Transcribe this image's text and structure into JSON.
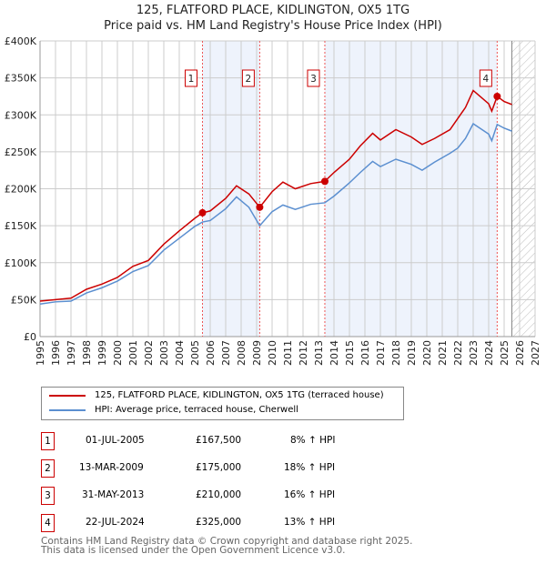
{
  "chart_data": {
    "type": "line",
    "title": "125, FLATFORD PLACE, KIDLINGTON, OX5 1TG",
    "subtitle": "Price paid vs. HM Land Registry's House Price Index (HPI)",
    "xlim": [
      1995,
      2027
    ],
    "ylim": [
      0,
      400000
    ],
    "yticks": [
      "£0",
      "£50K",
      "£100K",
      "£150K",
      "£200K",
      "£250K",
      "£300K",
      "£350K",
      "£400K"
    ],
    "xticks": [
      "1995",
      "1996",
      "1997",
      "1998",
      "1999",
      "2000",
      "2001",
      "2002",
      "2003",
      "2004",
      "2005",
      "2006",
      "2007",
      "2008",
      "2009",
      "2010",
      "2011",
      "2012",
      "2013",
      "2014",
      "2015",
      "2016",
      "2017",
      "2018",
      "2019",
      "2020",
      "2021",
      "2022",
      "2023",
      "2024",
      "2025",
      "2026",
      "2027"
    ],
    "series": [
      {
        "name": "125, FLATFORD PLACE, KIDLINGTON, OX5 1TG (terraced house)",
        "color": "#cc0000",
        "x": [
          1995,
          1996,
          1997,
          1998,
          1999,
          2000,
          2001,
          2002,
          2003,
          2004,
          2005,
          2005.5,
          2006,
          2007,
          2007.7,
          2008.5,
          2009.2,
          2010,
          2010.7,
          2011.5,
          2012.5,
          2013.4,
          2014,
          2015,
          2015.7,
          2016.5,
          2017,
          2018,
          2019,
          2019.7,
          2020.5,
          2021.5,
          2022,
          2022.5,
          2023,
          2024,
          2024.2,
          2024.55,
          2025,
          2025.5
        ],
        "y": [
          48,
          50,
          52,
          64,
          71,
          80,
          95,
          103,
          125,
          143,
          160,
          167.5,
          170,
          187,
          204,
          193,
          175,
          196,
          209,
          200,
          207,
          210,
          222,
          240,
          258,
          275,
          266,
          280,
          270,
          260,
          268,
          280,
          295,
          310,
          333,
          315,
          305,
          325,
          318,
          314
        ]
      },
      {
        "name": "HPI: Average price, terraced house, Cherwell",
        "color": "#5b8fd0",
        "x": [
          1995,
          1996,
          1997,
          1998,
          1999,
          2000,
          2001,
          2002,
          2003,
          2004,
          2005,
          2005.5,
          2006,
          2007,
          2007.7,
          2008.5,
          2009.2,
          2010,
          2010.7,
          2011.5,
          2012.5,
          2013.4,
          2014,
          2015,
          2015.7,
          2016.5,
          2017,
          2018,
          2019,
          2019.7,
          2020.5,
          2021.5,
          2022,
          2022.5,
          2023,
          2024,
          2024.2,
          2024.55,
          2025,
          2025.5
        ],
        "y": [
          44,
          47,
          48,
          59,
          66,
          75,
          88,
          96,
          117,
          133,
          149,
          155,
          157,
          173,
          189,
          175,
          150,
          169,
          178,
          172,
          179,
          181,
          190,
          208,
          222,
          237,
          230,
          240,
          233,
          225,
          236,
          248,
          255,
          268,
          288,
          274,
          265,
          287,
          282,
          278
        ]
      }
    ],
    "y_units": "thousands GBP",
    "sales": [
      {
        "n": "1",
        "x": 2005.5,
        "y": 167.5,
        "date": "01-JUL-2005",
        "price": "£167,500",
        "hpi": "8% ↑ HPI"
      },
      {
        "n": "2",
        "x": 2009.2,
        "y": 175,
        "date": "13-MAR-2009",
        "price": "£175,000",
        "hpi": "18% ↑ HPI"
      },
      {
        "n": "3",
        "x": 2013.41,
        "y": 210,
        "date": "31-MAY-2013",
        "price": "£210,000",
        "hpi": "16% ↑ HPI"
      },
      {
        "n": "4",
        "x": 2024.55,
        "y": 325,
        "date": "22-JUL-2024",
        "price": "£325,000",
        "hpi": "13% ↑ HPI"
      }
    ],
    "forecast_from": 2025.5
  },
  "footer": {
    "line1": "Contains HM Land Registry data © Crown copyright and database right 2025.",
    "line2": "This data is licensed under the Open Government Licence v3.0."
  }
}
